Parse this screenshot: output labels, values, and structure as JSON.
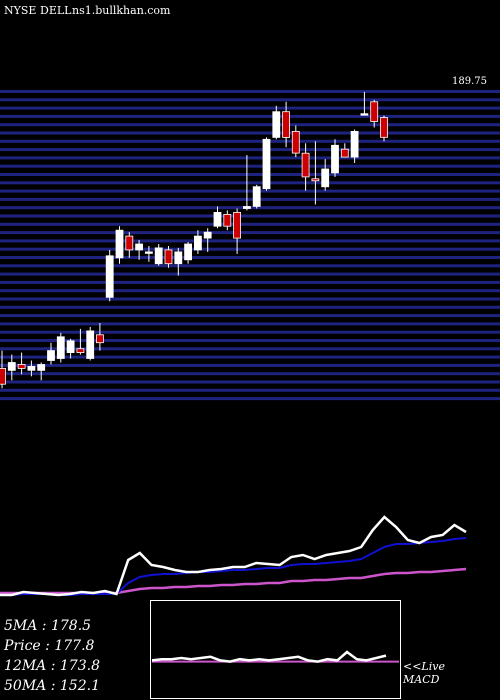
{
  "header": {
    "exchange": "NYSE",
    "symbol": "DELL",
    "site": "ns1.bullkhan.com"
  },
  "colors": {
    "background": "#000000",
    "gridline": "#1f2380",
    "up_candle": "#ffffff",
    "down_candle": "#cc0000",
    "short_ma": "#ffffff",
    "mid_ma": "#1010d0",
    "long_ma": "#cc55cc",
    "macd_signal": "#cc55cc"
  },
  "stats": {
    "ma5": {
      "label": "5MA",
      "value": "178.5"
    },
    "price": {
      "label": "Price",
      "value": "177.8"
    },
    "ma12": {
      "label": "12MA",
      "value": "173.8"
    },
    "ma50": {
      "label": "50MA",
      "value": "152.1"
    }
  },
  "live_macd": {
    "line1": "<<Live",
    "line2": "MACD"
  },
  "chart_data": {
    "type": "candlestick",
    "y_top_label": "189.75",
    "ylim": [
      112,
      191
    ],
    "grid": true,
    "candles": [
      {
        "o": 120.0,
        "h": 124.5,
        "l": 115.0,
        "c": 116.0
      },
      {
        "o": 119.5,
        "h": 123.5,
        "l": 117.0,
        "c": 121.5
      },
      {
        "o": 121.0,
        "h": 124.0,
        "l": 118.5,
        "c": 120.0
      },
      {
        "o": 119.5,
        "h": 122.0,
        "l": 118.0,
        "c": 120.5
      },
      {
        "o": 119.5,
        "h": 121.5,
        "l": 117.0,
        "c": 121.0
      },
      {
        "o": 122.0,
        "h": 126.5,
        "l": 121.0,
        "c": 124.5
      },
      {
        "o": 122.5,
        "h": 129.0,
        "l": 121.5,
        "c": 128.0
      },
      {
        "o": 124.0,
        "h": 127.5,
        "l": 122.5,
        "c": 127.0
      },
      {
        "o": 125.0,
        "h": 130.0,
        "l": 123.5,
        "c": 124.0
      },
      {
        "o": 122.5,
        "h": 130.5,
        "l": 122.0,
        "c": 129.5
      },
      {
        "o": 128.5,
        "h": 131.5,
        "l": 124.5,
        "c": 126.5
      },
      {
        "o": 138.0,
        "h": 150.0,
        "l": 137.0,
        "c": 148.5
      },
      {
        "o": 148.0,
        "h": 156.0,
        "l": 146.5,
        "c": 155.0
      },
      {
        "o": 153.5,
        "h": 154.5,
        "l": 148.0,
        "c": 150.0
      },
      {
        "o": 150.0,
        "h": 152.5,
        "l": 147.5,
        "c": 151.5
      },
      {
        "o": 149.5,
        "h": 151.0,
        "l": 147.0,
        "c": 149.5
      },
      {
        "o": 146.5,
        "h": 151.5,
        "l": 146.0,
        "c": 150.5
      },
      {
        "o": 150.0,
        "h": 151.0,
        "l": 145.5,
        "c": 146.5
      },
      {
        "o": 146.5,
        "h": 150.5,
        "l": 143.5,
        "c": 149.5
      },
      {
        "o": 147.5,
        "h": 152.0,
        "l": 146.5,
        "c": 151.5
      },
      {
        "o": 150.0,
        "h": 155.0,
        "l": 149.0,
        "c": 153.5
      },
      {
        "o": 153.0,
        "h": 155.5,
        "l": 149.5,
        "c": 154.5
      },
      {
        "o": 156.0,
        "h": 161.0,
        "l": 155.5,
        "c": 159.5
      },
      {
        "o": 159.0,
        "h": 160.0,
        "l": 155.0,
        "c": 156.0
      },
      {
        "o": 159.5,
        "h": 160.5,
        "l": 149.0,
        "c": 153.0
      },
      {
        "o": 160.5,
        "h": 174.0,
        "l": 160.0,
        "c": 161.0
      },
      {
        "o": 161.0,
        "h": 166.5,
        "l": 160.5,
        "c": 166.0
      },
      {
        "o": 165.5,
        "h": 178.5,
        "l": 165.0,
        "c": 178.0
      },
      {
        "o": 178.5,
        "h": 186.5,
        "l": 178.0,
        "c": 185.0
      },
      {
        "o": 185.0,
        "h": 187.5,
        "l": 176.0,
        "c": 178.5
      },
      {
        "o": 180.0,
        "h": 181.5,
        "l": 173.5,
        "c": 174.5
      },
      {
        "o": 174.5,
        "h": 177.0,
        "l": 165.0,
        "c": 168.5
      },
      {
        "o": 168.0,
        "h": 177.5,
        "l": 161.5,
        "c": 167.5
      },
      {
        "o": 166.0,
        "h": 173.0,
        "l": 165.0,
        "c": 170.5
      },
      {
        "o": 169.5,
        "h": 178.0,
        "l": 168.5,
        "c": 176.5
      },
      {
        "o": 175.5,
        "h": 177.0,
        "l": 173.5,
        "c": 173.5
      },
      {
        "o": 173.5,
        "h": 180.5,
        "l": 172.0,
        "c": 180.0
      },
      {
        "o": 184.5,
        "h": 190.0,
        "l": 184.0,
        "c": 184.5
      },
      {
        "o": 187.5,
        "h": 188.0,
        "l": 181.0,
        "c": 182.5
      },
      {
        "o": 183.5,
        "h": 184.0,
        "l": 177.5,
        "c": 178.5
      }
    ],
    "ma_panel": {
      "ylim": [
        0,
        100
      ],
      "short_ma": [
        10,
        10,
        13,
        12,
        11,
        10,
        11,
        13,
        12,
        14,
        11,
        45,
        52,
        40,
        38,
        35,
        33,
        33,
        35,
        36,
        38,
        38,
        42,
        41,
        40,
        48,
        50,
        46,
        50,
        52,
        54,
        58,
        75,
        88,
        78,
        65,
        62,
        68,
        70,
        80,
        73
      ],
      "mid_ma": [
        10,
        10,
        11,
        11,
        11,
        10,
        10,
        11,
        11,
        11,
        11,
        22,
        28,
        30,
        31,
        31,
        32,
        33,
        33,
        34,
        35,
        35,
        36,
        37,
        37,
        40,
        41,
        41,
        42,
        43,
        44,
        46,
        52,
        58,
        61,
        61,
        62,
        63,
        64,
        66,
        67
      ],
      "long_ma": [
        12,
        12,
        12,
        12,
        12,
        12,
        12,
        12,
        12,
        12,
        12,
        14,
        16,
        17,
        17,
        18,
        18,
        19,
        19,
        20,
        20,
        21,
        21,
        22,
        22,
        24,
        24,
        25,
        25,
        26,
        27,
        27,
        29,
        31,
        32,
        32,
        33,
        33,
        34,
        35,
        36
      ]
    },
    "macd_panel": {
      "macd": [
        8,
        9,
        9,
        10,
        9,
        10,
        11,
        8,
        7,
        9,
        8,
        9,
        8,
        9,
        10,
        11,
        8,
        7,
        9,
        8,
        15,
        9,
        8,
        10,
        12
      ],
      "signal_level": 7
    }
  }
}
